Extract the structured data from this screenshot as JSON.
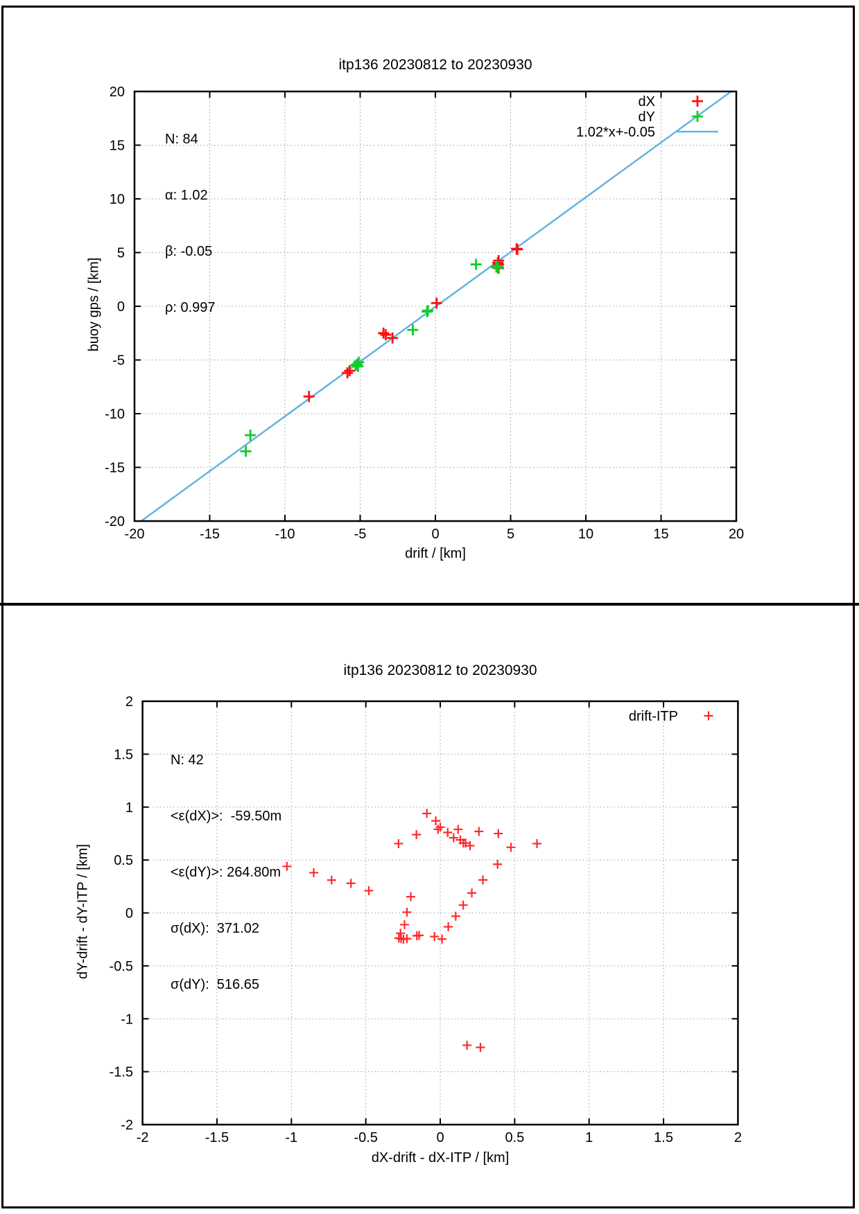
{
  "frame": {
    "border_color": "#000000"
  },
  "chart_data": [
    {
      "type": "scatter",
      "title": "itp136 20230812 to 20230930",
      "xlabel": "drift / [km]",
      "ylabel": "buoy gps / [km]",
      "xlim": [
        -20,
        20
      ],
      "ylim": [
        -20,
        20
      ],
      "xticks": [
        -20,
        -15,
        -10,
        -5,
        0,
        5,
        10,
        15,
        20
      ],
      "yticks": [
        -20,
        -15,
        -10,
        -5,
        0,
        5,
        10,
        15,
        20
      ],
      "grid": true,
      "stats_lines": [
        "N: 84",
        "α: 1.02",
        "β: -0.05",
        "ρ: 0.997"
      ],
      "legend_position": "top-right-inside",
      "legend": [
        {
          "label": "dX",
          "type": "point",
          "color": "#ff0f0f"
        },
        {
          "label": "dY",
          "type": "point",
          "color": "#0fcc2a"
        },
        {
          "label": "1.02*x+-0.05",
          "type": "line",
          "color": "#64b2e2"
        }
      ],
      "fit": {
        "slope": 1.02,
        "intercept": -0.05,
        "color": "#64b2e2"
      },
      "series": [
        {
          "name": "dX",
          "color": "#ff0f0f",
          "points": [
            [
              5.4,
              5.35
            ],
            [
              5.45,
              5.3
            ],
            [
              4.2,
              4.25
            ],
            [
              4.15,
              4.05
            ],
            [
              4.2,
              3.9
            ],
            [
              4.15,
              3.7
            ],
            [
              4.2,
              3.55
            ],
            [
              0.08,
              0.3
            ],
            [
              -3.45,
              -2.5
            ],
            [
              -3.3,
              -2.65
            ],
            [
              -2.85,
              -2.95
            ],
            [
              -5.7,
              -6.0
            ],
            [
              -5.85,
              -6.2
            ],
            [
              -8.4,
              -8.4
            ]
          ]
        },
        {
          "name": "dY",
          "color": "#0fcc2a",
          "points": [
            [
              2.7,
              3.9
            ],
            [
              4.1,
              3.75
            ],
            [
              4.15,
              3.6
            ],
            [
              4.05,
              3.65
            ],
            [
              -0.5,
              -0.4
            ],
            [
              -0.55,
              -0.5
            ],
            [
              -1.5,
              -2.2
            ],
            [
              -5.1,
              -5.2
            ],
            [
              -5.2,
              -5.4
            ],
            [
              -5.3,
              -5.5
            ],
            [
              -5.15,
              -5.6
            ],
            [
              -12.3,
              -12.0
            ],
            [
              -12.6,
              -13.5
            ]
          ]
        }
      ]
    },
    {
      "type": "scatter",
      "title": "itp136 20230812 to 20230930",
      "xlabel": "dX-drift - dX-ITP / [km]",
      "ylabel": "dY-drift - dY-ITP / [km]",
      "xlim": [
        -2,
        2
      ],
      "ylim": [
        -2,
        2
      ],
      "xticks": [
        -2,
        -1.5,
        -1,
        -0.5,
        0,
        0.5,
        1,
        1.5,
        2
      ],
      "yticks": [
        -2,
        -1.5,
        -1,
        -0.5,
        0,
        0.5,
        1,
        1.5,
        2
      ],
      "grid": true,
      "stats_lines": [
        "N: 42",
        "<ε(dX)>:  -59.50m",
        "<ε(dY)>: 264.80m",
        "σ(dX):  371.02",
        "σ(dY):  516.65"
      ],
      "legend_position": "top-right-inside",
      "legend": [
        {
          "label": "drift-ITP",
          "type": "point",
          "color": "#ff2a2a"
        }
      ],
      "series": [
        {
          "name": "drift-ITP",
          "color": "#ff2a2a",
          "points": [
            [
              -0.09,
              0.94
            ],
            [
              -0.03,
              0.87
            ],
            [
              -0.015,
              0.79
            ],
            [
              0.0,
              0.81
            ],
            [
              0.05,
              0.76
            ],
            [
              0.09,
              0.71
            ],
            [
              0.12,
              0.79
            ],
            [
              0.135,
              0.69
            ],
            [
              0.155,
              0.66
            ],
            [
              0.17,
              0.66
            ],
            [
              0.2,
              0.635
            ],
            [
              0.26,
              0.77
            ],
            [
              0.39,
              0.75
            ],
            [
              0.475,
              0.62
            ],
            [
              -0.16,
              0.74
            ],
            [
              -0.28,
              0.655
            ],
            [
              0.385,
              0.46
            ],
            [
              -0.198,
              0.153
            ],
            [
              -0.224,
              0.007
            ],
            [
              -0.24,
              -0.111
            ],
            [
              -0.267,
              -0.192
            ],
            [
              -0.278,
              -0.238
            ],
            [
              -0.263,
              -0.244
            ],
            [
              -0.247,
              -0.249
            ],
            [
              -0.224,
              -0.244
            ],
            [
              -0.157,
              -0.216
            ],
            [
              -0.142,
              -0.212
            ],
            [
              -0.039,
              -0.223
            ],
            [
              0.012,
              -0.247
            ],
            [
              0.054,
              -0.131
            ],
            [
              0.104,
              -0.031
            ],
            [
              0.154,
              0.074
            ],
            [
              0.212,
              0.188
            ],
            [
              0.287,
              0.312
            ],
            [
              -1.03,
              0.44
            ],
            [
              -0.85,
              0.38
            ],
            [
              -0.73,
              0.31
            ],
            [
              -0.6,
              0.28
            ],
            [
              -0.48,
              0.21
            ],
            [
              0.18,
              -1.25
            ],
            [
              0.27,
              -1.27
            ],
            [
              0.65,
              0.655
            ]
          ]
        }
      ]
    }
  ]
}
